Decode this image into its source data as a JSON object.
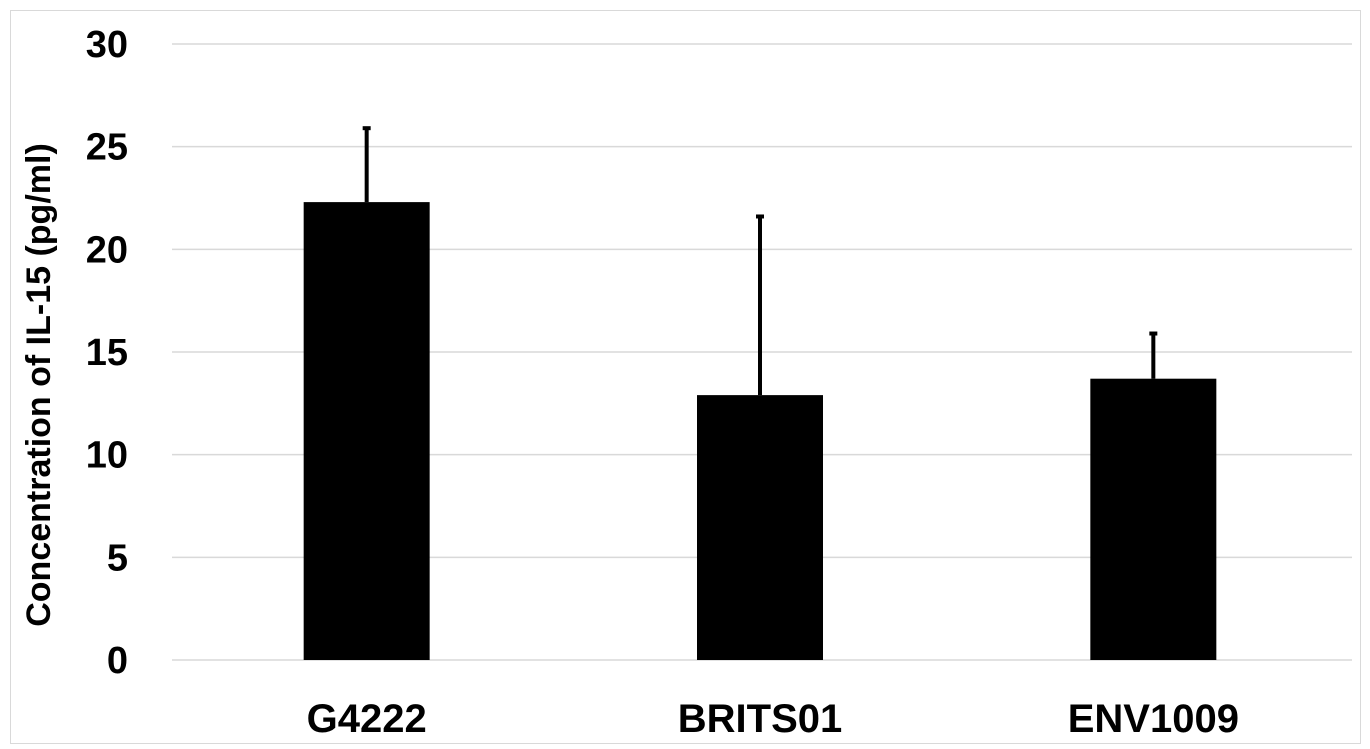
{
  "chart_data": {
    "type": "bar",
    "title": "",
    "xlabel": "",
    "ylabel": "Concentration of IL-15 (pg/ml)",
    "categories": [
      "G4222",
      "BRITS01",
      "ENV1009"
    ],
    "values": [
      22.3,
      12.9,
      13.7
    ],
    "error_upper": [
      25.9,
      21.6,
      15.9
    ],
    "ylim": [
      0,
      30
    ],
    "yticks": [
      "0",
      "5",
      "10",
      "15",
      "20",
      "25",
      "30"
    ],
    "grid": true,
    "legend": "none",
    "colors": {
      "bar": "#000000",
      "grid": "#d9d9d9",
      "error_bar": "#000000"
    }
  }
}
